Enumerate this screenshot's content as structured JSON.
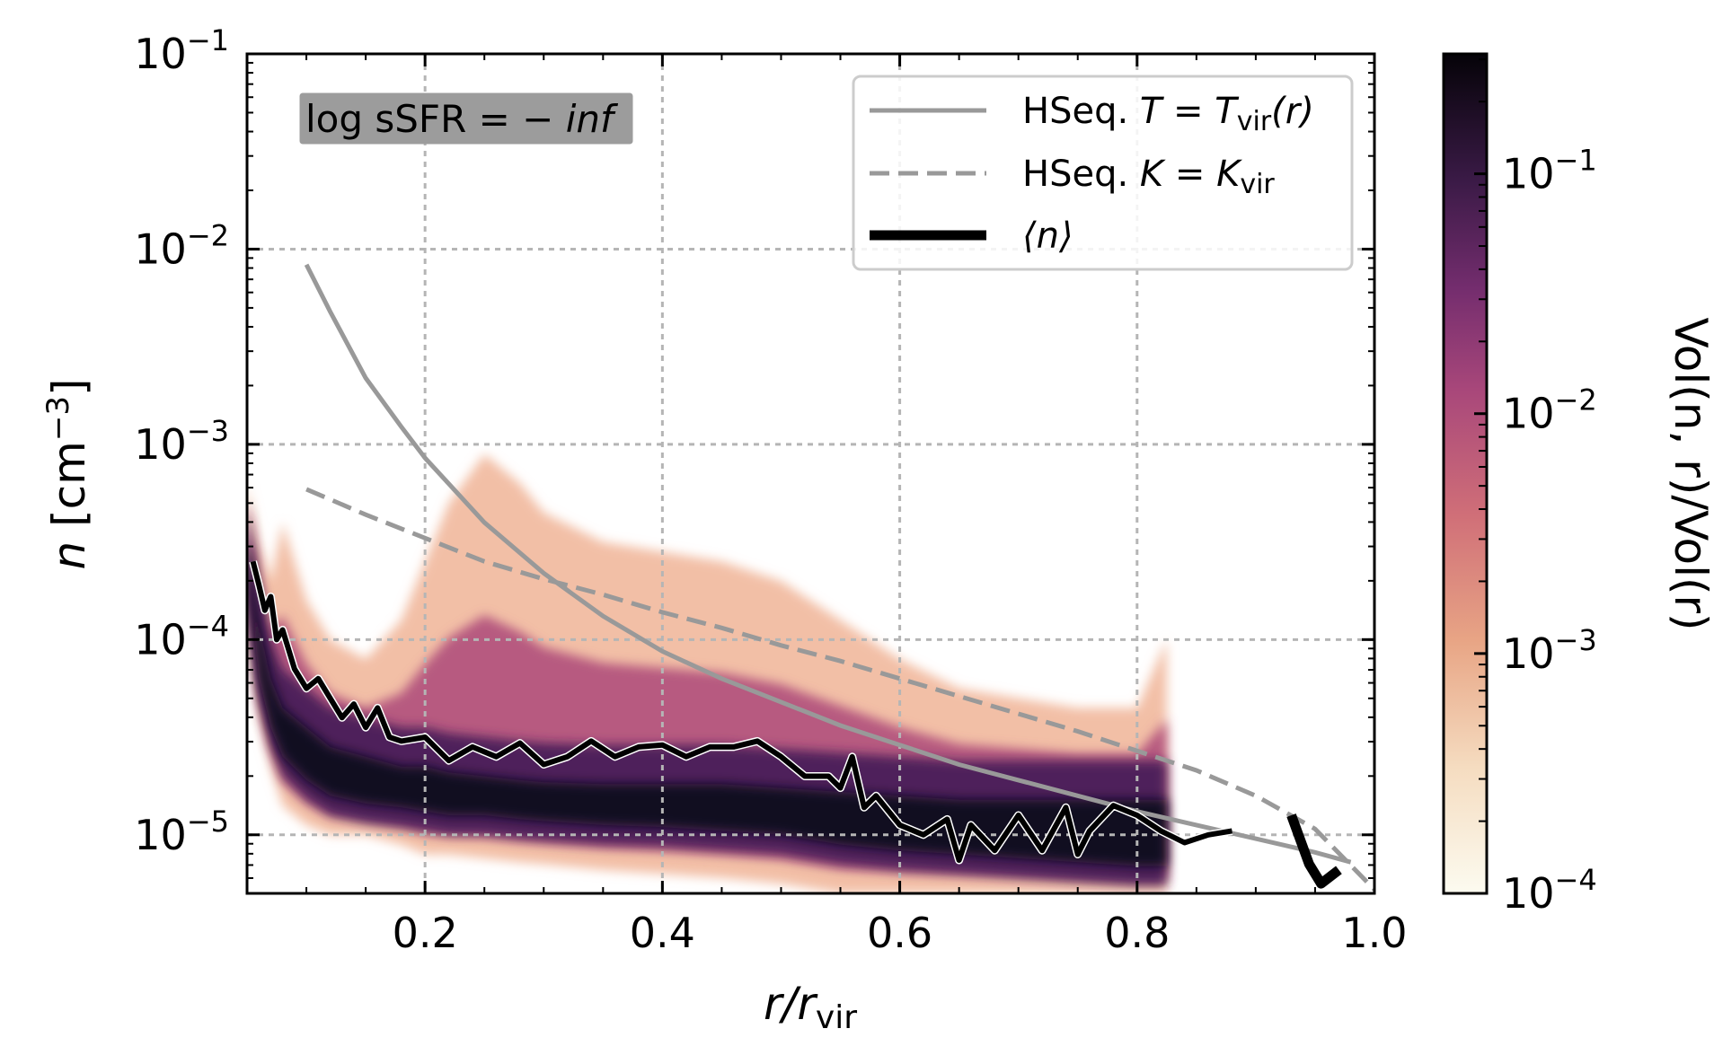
{
  "chart_data": {
    "type": "heatmap",
    "annotation": {
      "prefix": "log sSFR",
      "eq": " = ",
      "value": "− inf"
    },
    "xlabel": {
      "main": "r/r",
      "sub": "vir"
    },
    "ylabel": {
      "main": "n [cm",
      "sup": "−3",
      "close": "]"
    },
    "colorbar_label": "Vol(n, r)/Vol(r)",
    "xlim": [
      0.05,
      1.0
    ],
    "ylim_log10": [
      -5.3,
      -1.0
    ],
    "colorbar_log10_range": [
      -4,
      -0.5
    ],
    "x_ticks": [
      {
        "value": 0.2,
        "label": "0.2"
      },
      {
        "value": 0.4,
        "label": "0.4"
      },
      {
        "value": 0.6,
        "label": "0.6"
      },
      {
        "value": 0.8,
        "label": "0.8"
      },
      {
        "value": 1.0,
        "label": "1.0"
      }
    ],
    "y_ticks": [
      {
        "exp": -1,
        "base": "10",
        "sup": "−1"
      },
      {
        "exp": -2,
        "base": "10",
        "sup": "−2"
      },
      {
        "exp": -3,
        "base": "10",
        "sup": "−3"
      },
      {
        "exp": -4,
        "base": "10",
        "sup": "−4"
      },
      {
        "exp": -5,
        "base": "10",
        "sup": "−5"
      }
    ],
    "colorbar_ticks": [
      {
        "exp": -1,
        "base": "10",
        "sup": "−1"
      },
      {
        "exp": -2,
        "base": "10",
        "sup": "−2"
      },
      {
        "exp": -3,
        "base": "10",
        "sup": "−3"
      },
      {
        "exp": -4,
        "base": "10",
        "sup": "−4"
      }
    ],
    "grid": true,
    "legend_position": "top-right",
    "series": [
      {
        "name": "HSeq. T = Tvir(r)",
        "legend": {
          "prefix": "HSeq. ",
          "var": "T",
          "eq": " = ",
          "rhs": "T",
          "sub": "vir",
          "tail": "(r)"
        },
        "style": "solid",
        "color": "#999999",
        "x": [
          0.1,
          0.12,
          0.15,
          0.18,
          0.2,
          0.25,
          0.3,
          0.35,
          0.4,
          0.45,
          0.5,
          0.55,
          0.6,
          0.65,
          0.7,
          0.75,
          0.8,
          0.85,
          0.9,
          0.95,
          0.98
        ],
        "log10y": [
          -2.08,
          -2.32,
          -2.66,
          -2.91,
          -3.07,
          -3.4,
          -3.66,
          -3.88,
          -4.06,
          -4.2,
          -4.32,
          -4.44,
          -4.54,
          -4.64,
          -4.72,
          -4.8,
          -4.88,
          -4.95,
          -5.02,
          -5.09,
          -5.14
        ]
      },
      {
        "name": "HSeq. K = Kvir",
        "legend": {
          "prefix": "HSeq. ",
          "var": "K",
          "eq": " = ",
          "rhs": "K",
          "sub": "vir",
          "tail": ""
        },
        "style": "dashed",
        "color": "#999999",
        "x": [
          0.1,
          0.15,
          0.2,
          0.25,
          0.3,
          0.35,
          0.4,
          0.45,
          0.5,
          0.55,
          0.6,
          0.65,
          0.7,
          0.75,
          0.8,
          0.85,
          0.9,
          0.95,
          1.0
        ],
        "log10y": [
          -3.23,
          -3.36,
          -3.48,
          -3.6,
          -3.69,
          -3.77,
          -3.86,
          -3.94,
          -4.03,
          -4.11,
          -4.2,
          -4.29,
          -4.38,
          -4.47,
          -4.57,
          -4.67,
          -4.8,
          -4.97,
          -5.28
        ]
      },
      {
        "name": "⟨n⟩",
        "legend": {
          "prefix": "",
          "var": "",
          "eq": "",
          "rhs": "⟨n⟩",
          "sub": "",
          "tail": ""
        },
        "style": "thick",
        "color": "#000000",
        "x": [
          0.055,
          0.06,
          0.065,
          0.07,
          0.075,
          0.08,
          0.09,
          0.1,
          0.11,
          0.12,
          0.13,
          0.14,
          0.15,
          0.16,
          0.17,
          0.18,
          0.2,
          0.22,
          0.24,
          0.26,
          0.28,
          0.3,
          0.32,
          0.34,
          0.36,
          0.38,
          0.4,
          0.42,
          0.44,
          0.46,
          0.48,
          0.5,
          0.52,
          0.54,
          0.55,
          0.56,
          0.57,
          0.58,
          0.6,
          0.62,
          0.64,
          0.65,
          0.66,
          0.68,
          0.7,
          0.72,
          0.74,
          0.75,
          0.76,
          0.78,
          0.8,
          0.82,
          0.84,
          0.86,
          0.88
        ],
        "log10y": [
          -3.6,
          -3.72,
          -3.85,
          -3.78,
          -4.0,
          -3.95,
          -4.15,
          -4.25,
          -4.2,
          -4.3,
          -4.4,
          -4.33,
          -4.45,
          -4.35,
          -4.5,
          -4.52,
          -4.5,
          -4.62,
          -4.55,
          -4.6,
          -4.53,
          -4.64,
          -4.6,
          -4.52,
          -4.6,
          -4.55,
          -4.54,
          -4.6,
          -4.55,
          -4.55,
          -4.52,
          -4.6,
          -4.7,
          -4.7,
          -4.76,
          -4.6,
          -4.86,
          -4.8,
          -4.95,
          -5.0,
          -4.92,
          -5.13,
          -4.95,
          -5.08,
          -4.9,
          -5.08,
          -4.86,
          -5.1,
          -4.98,
          -4.85,
          -4.9,
          -4.98,
          -5.04,
          -5.0,
          -4.98
        ]
      }
    ],
    "heatmap_envelope": {
      "x": [
        0.05,
        0.06,
        0.07,
        0.08,
        0.1,
        0.12,
        0.15,
        0.18,
        0.2,
        0.22,
        0.25,
        0.28,
        0.3,
        0.35,
        0.4,
        0.45,
        0.5,
        0.55,
        0.6,
        0.65,
        0.7,
        0.75,
        0.8,
        0.825
      ],
      "upper_log10": [
        -3.2,
        -3.5,
        -3.7,
        -3.4,
        -3.8,
        -4.0,
        -4.1,
        -3.9,
        -3.6,
        -3.3,
        -3.05,
        -3.2,
        -3.35,
        -3.5,
        -3.55,
        -3.6,
        -3.7,
        -3.9,
        -4.1,
        -4.25,
        -4.3,
        -4.35,
        -4.35,
        -4.0
      ],
      "lower_log10": [
        -3.9,
        -4.4,
        -4.65,
        -4.85,
        -4.95,
        -5.0,
        -5.0,
        -5.05,
        -5.1,
        -5.1,
        -5.12,
        -5.14,
        -5.15,
        -5.18,
        -5.2,
        -5.22,
        -5.25,
        -5.3,
        -5.3,
        -5.3,
        -5.3,
        -5.3,
        -5.3,
        -5.3
      ],
      "core_upper_log10": [
        -3.5,
        -3.9,
        -4.2,
        -4.35,
        -4.45,
        -4.55,
        -4.6,
        -4.65,
        -4.65,
        -4.68,
        -4.7,
        -4.72,
        -4.73,
        -4.74,
        -4.74,
        -4.74,
        -4.76,
        -4.78,
        -4.8,
        -4.82,
        -4.82,
        -4.82,
        -4.82,
        -4.82
      ],
      "core_lower_log10": [
        -3.7,
        -4.2,
        -4.45,
        -4.6,
        -4.72,
        -4.8,
        -4.84,
        -4.86,
        -4.88,
        -4.9,
        -4.9,
        -4.92,
        -4.93,
        -4.95,
        -4.96,
        -4.98,
        -5.0,
        -5.05,
        -5.08,
        -5.1,
        -5.12,
        -5.14,
        -5.16,
        -5.16
      ]
    }
  }
}
